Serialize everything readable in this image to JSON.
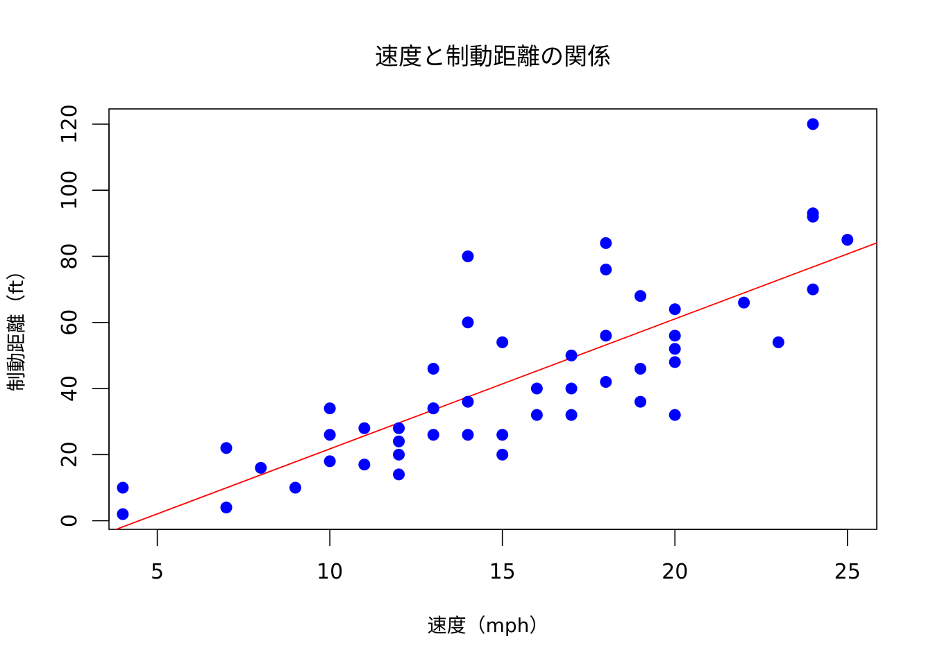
{
  "chart_data": {
    "type": "scatter",
    "title": "速度と制動距離の関係",
    "xlabel": "速度（mph）",
    "ylabel": "制動距離（ft）",
    "xlim": [
      3.6,
      25.85
    ],
    "ylim": [
      -2.6,
      124.6
    ],
    "xticks": [
      5,
      10,
      15,
      20,
      25
    ],
    "yticks": [
      0,
      20,
      40,
      60,
      80,
      100,
      120
    ],
    "grid": false,
    "point_color": "#0000ff",
    "line_color": "#ff0000",
    "points": [
      {
        "x": 4,
        "y": 2
      },
      {
        "x": 4,
        "y": 10
      },
      {
        "x": 7,
        "y": 4
      },
      {
        "x": 7,
        "y": 22
      },
      {
        "x": 8,
        "y": 16
      },
      {
        "x": 9,
        "y": 10
      },
      {
        "x": 10,
        "y": 18
      },
      {
        "x": 10,
        "y": 26
      },
      {
        "x": 10,
        "y": 34
      },
      {
        "x": 11,
        "y": 17
      },
      {
        "x": 11,
        "y": 28
      },
      {
        "x": 12,
        "y": 14
      },
      {
        "x": 12,
        "y": 20
      },
      {
        "x": 12,
        "y": 24
      },
      {
        "x": 12,
        "y": 28
      },
      {
        "x": 13,
        "y": 26
      },
      {
        "x": 13,
        "y": 34
      },
      {
        "x": 13,
        "y": 34
      },
      {
        "x": 13,
        "y": 46
      },
      {
        "x": 14,
        "y": 26
      },
      {
        "x": 14,
        "y": 36
      },
      {
        "x": 14,
        "y": 60
      },
      {
        "x": 14,
        "y": 80
      },
      {
        "x": 15,
        "y": 20
      },
      {
        "x": 15,
        "y": 26
      },
      {
        "x": 15,
        "y": 54
      },
      {
        "x": 16,
        "y": 32
      },
      {
        "x": 16,
        "y": 40
      },
      {
        "x": 17,
        "y": 32
      },
      {
        "x": 17,
        "y": 40
      },
      {
        "x": 17,
        "y": 50
      },
      {
        "x": 18,
        "y": 42
      },
      {
        "x": 18,
        "y": 56
      },
      {
        "x": 18,
        "y": 76
      },
      {
        "x": 18,
        "y": 84
      },
      {
        "x": 19,
        "y": 36
      },
      {
        "x": 19,
        "y": 46
      },
      {
        "x": 19,
        "y": 68
      },
      {
        "x": 20,
        "y": 32
      },
      {
        "x": 20,
        "y": 48
      },
      {
        "x": 20,
        "y": 52
      },
      {
        "x": 20,
        "y": 56
      },
      {
        "x": 20,
        "y": 64
      },
      {
        "x": 22,
        "y": 66
      },
      {
        "x": 23,
        "y": 54
      },
      {
        "x": 24,
        "y": 70
      },
      {
        "x": 24,
        "y": 92
      },
      {
        "x": 24,
        "y": 93
      },
      {
        "x": 24,
        "y": 120
      },
      {
        "x": 25,
        "y": 85
      }
    ],
    "regression": {
      "intercept": -17.579,
      "slope": 3.932
    }
  }
}
